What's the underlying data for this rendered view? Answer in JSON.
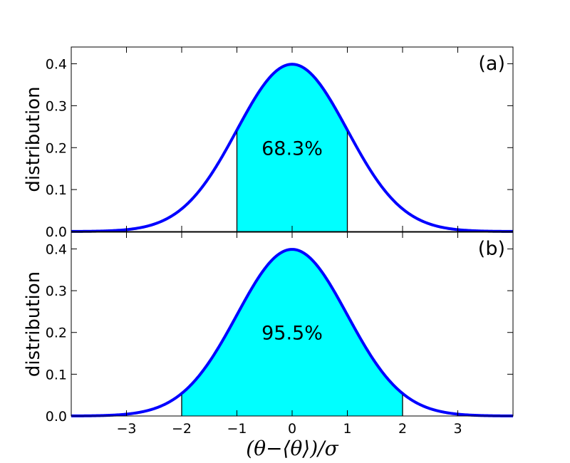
{
  "chart_data": [
    {
      "panel": "(a)",
      "type": "area",
      "title": "",
      "ylabel": "distribution",
      "xlabel": "",
      "xlim": [
        -4,
        4
      ],
      "ylim": [
        0,
        0.44
      ],
      "yticks": [
        0.0,
        0.1,
        0.2,
        0.3,
        0.4
      ],
      "ytick_labels": [
        "0.0",
        "0.1",
        "0.2",
        "0.3",
        "0.4"
      ],
      "curve": "standard normal density",
      "line_color": "#0000ff",
      "fill_color": "#00ffff",
      "shaded_interval": [
        -1,
        1
      ],
      "annotation": "68.3%",
      "series": [
        {
          "x": [
            -4,
            -3.5,
            -3,
            -2.5,
            -2,
            -1.5,
            -1,
            -0.5,
            0,
            0.5,
            1,
            1.5,
            2,
            2.5,
            3,
            3.5,
            4
          ],
          "values": [
            0.0001,
            0.0009,
            0.0044,
            0.0175,
            0.054,
            0.1295,
            0.242,
            0.3521,
            0.3989,
            0.3521,
            0.242,
            0.1295,
            0.054,
            0.0175,
            0.0044,
            0.0009,
            0.0001
          ]
        }
      ]
    },
    {
      "panel": "(b)",
      "type": "area",
      "title": "",
      "ylabel": "distribution",
      "xlabel": "(θ−⟨θ⟩)/σ",
      "xlim": [
        -4,
        4
      ],
      "ylim": [
        0,
        0.44
      ],
      "yticks": [
        0.0,
        0.1,
        0.2,
        0.3,
        0.4
      ],
      "ytick_labels": [
        "0.0",
        "0.1",
        "0.2",
        "0.3",
        "0.4"
      ],
      "xticks": [
        -3,
        -2,
        -1,
        0,
        1,
        2,
        3
      ],
      "xtick_labels": [
        "−3",
        "−2",
        "−1",
        "0",
        "1",
        "2",
        "3"
      ],
      "curve": "standard normal density",
      "line_color": "#0000ff",
      "fill_color": "#00ffff",
      "shaded_interval": [
        -2,
        2
      ],
      "annotation": "95.5%",
      "series": [
        {
          "x": [
            -4,
            -3.5,
            -3,
            -2.5,
            -2,
            -1.5,
            -1,
            -0.5,
            0,
            0.5,
            1,
            1.5,
            2,
            2.5,
            3,
            3.5,
            4
          ],
          "values": [
            0.0001,
            0.0009,
            0.0044,
            0.0175,
            0.054,
            0.1295,
            0.242,
            0.3521,
            0.3989,
            0.3521,
            0.242,
            0.1295,
            0.054,
            0.0175,
            0.0044,
            0.0009,
            0.0001
          ]
        }
      ]
    }
  ]
}
